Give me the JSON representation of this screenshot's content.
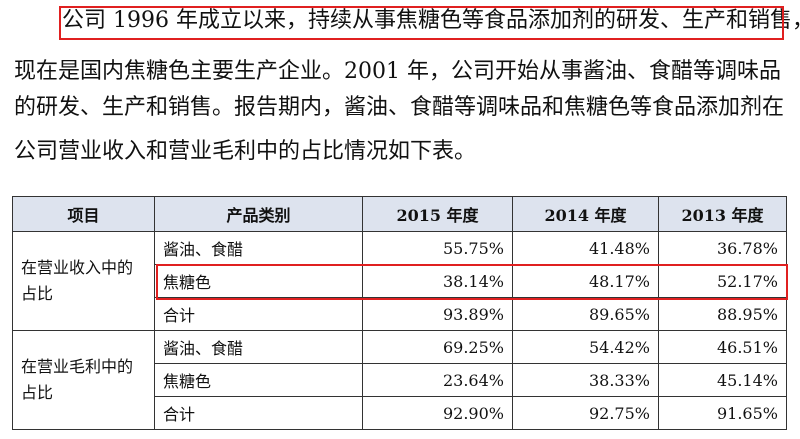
{
  "paragraph": {
    "lines": [
      "公司 1996 年成立以来，持续从事焦糖色等食品添加剂的研发、生产和销售，",
      "现在是国内焦糖色主要生产企业。2001 年，公司开始从事酱油、食醋等调味品",
      "的研发、生产和销售。报告期内，酱油、食醋等调味品和焦糖色等食品添加剂在",
      "公司营业收入和营业毛利中的占比情况如下表。"
    ]
  },
  "table": {
    "headers": [
      "项目",
      "产品类别",
      "2015 年度",
      "2014 年度",
      "2013 年度"
    ],
    "groups": [
      {
        "label": "在营业收入中的占比",
        "rows": [
          {
            "category": "酱油、食醋",
            "values": [
              "55.75%",
              "41.48%",
              "36.78%"
            ]
          },
          {
            "category": "焦糖色",
            "values": [
              "38.14%",
              "48.17%",
              "52.17%"
            ]
          },
          {
            "category": "合计",
            "values": [
              "93.89%",
              "89.65%",
              "88.95%"
            ]
          }
        ]
      },
      {
        "label": "在营业毛利中的占比",
        "rows": [
          {
            "category": "酱油、食醋",
            "values": [
              "69.25%",
              "54.42%",
              "46.51%"
            ]
          },
          {
            "category": "焦糖色",
            "values": [
              "23.64%",
              "38.33%",
              "45.14%"
            ]
          },
          {
            "category": "合计",
            "values": [
              "92.90%",
              "92.75%",
              "91.65%"
            ]
          }
        ]
      }
    ]
  },
  "colors": {
    "highlight_border": "#e02020",
    "header_background": "#dde3ee"
  }
}
